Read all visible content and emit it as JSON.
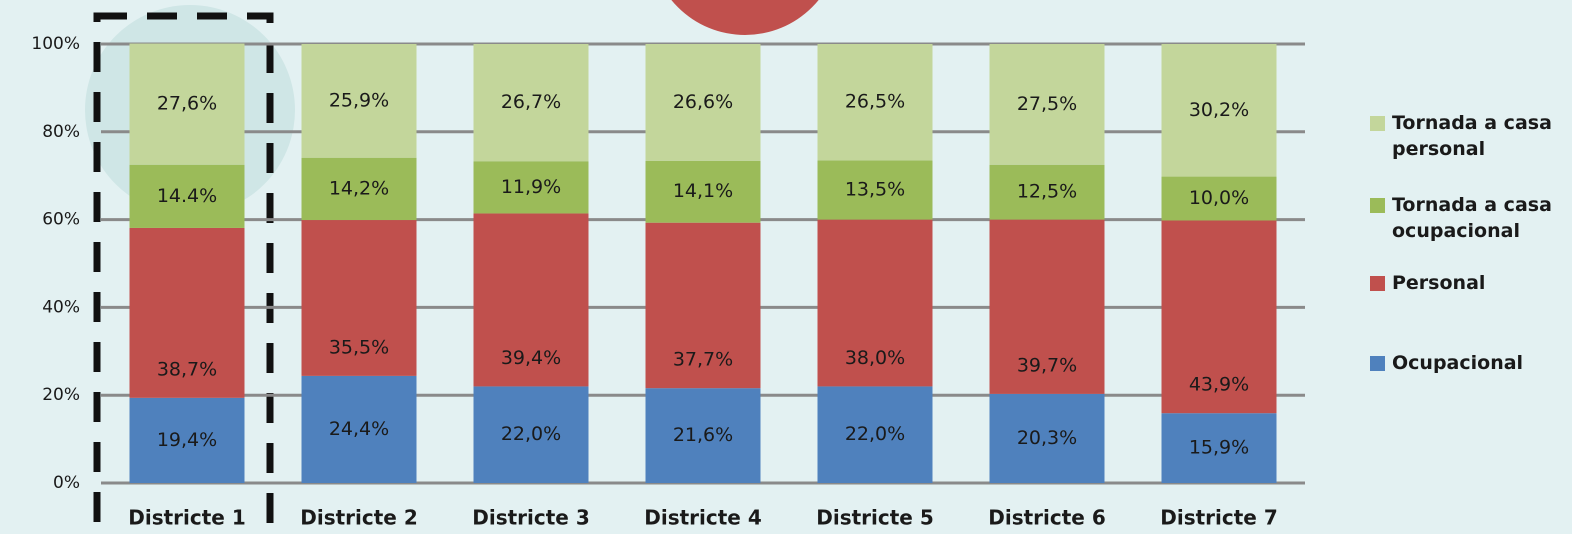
{
  "chart_data": {
    "type": "bar",
    "stacked": true,
    "categories": [
      "Districte 1",
      "Districte 2",
      "Districte 3",
      "Districte 4",
      "Districte 5",
      "Districte 6",
      "Districte 7"
    ],
    "series": [
      {
        "name": "Ocupacional",
        "color": "#4f81bd",
        "values": [
          19.4,
          24.4,
          22.0,
          21.6,
          22.0,
          20.3,
          15.9
        ],
        "value_labels": [
          "19,4%",
          "24,4%",
          "22,0%",
          "21,6%",
          "22,0%",
          "20,3%",
          "15,9%"
        ]
      },
      {
        "name": "Personal",
        "color": "#c0504d",
        "values": [
          38.7,
          35.5,
          39.4,
          37.7,
          38.0,
          39.7,
          43.9
        ],
        "value_labels": [
          "38,7%",
          "35,5%",
          "39,4%",
          "37,7%",
          "38,0%",
          "39,7%",
          "43,9%"
        ]
      },
      {
        "name": "Tornada a casa ocupacional",
        "color": "#9bbb59",
        "values": [
          14.4,
          14.2,
          11.9,
          14.1,
          13.5,
          12.5,
          10.0
        ],
        "value_labels": [
          "14.4%",
          "14,2%",
          "11,9%",
          "14,1%",
          "13,5%",
          "12,5%",
          "10,0%"
        ]
      },
      {
        "name": "Tornada a casa personal",
        "color": "#c3d69b",
        "values": [
          27.6,
          25.9,
          26.7,
          26.6,
          26.5,
          27.5,
          30.2
        ],
        "value_labels": [
          "27,6%",
          "25,9%",
          "26,7%",
          "26,6%",
          "26,5%",
          "27,5%",
          "30,2%"
        ]
      }
    ],
    "ylim": [
      0,
      100
    ],
    "yticks": [
      {
        "value": 0,
        "label": "0%"
      },
      {
        "value": 20,
        "label": "20%"
      },
      {
        "value": 40,
        "label": "40%"
      },
      {
        "value": 60,
        "label": "60%"
      },
      {
        "value": 80,
        "label": "80%"
      },
      {
        "value": 100,
        "label": "100%"
      }
    ],
    "grid": true,
    "legend": "right"
  }
}
